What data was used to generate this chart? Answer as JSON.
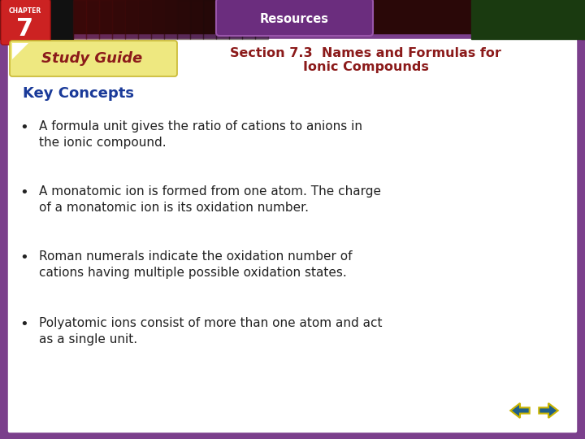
{
  "bg_outer": "#7B3F8C",
  "bg_inner": "#FFFFFF",
  "top_bar_left_color": "#1a1a1a",
  "top_bar_mid_color": "#5a0a0a",
  "top_bar_right_color": "#1a3a10",
  "resources_tab_color": "#6B2D7E",
  "resources_text": "Resources",
  "chapter_box_color": "#CC2222",
  "chapter_label": "CHAPTER",
  "chapter_number": "7",
  "study_guide_text": "Study Guide",
  "study_guide_color": "#8B1A1A",
  "study_guide_bg": "#EEE880",
  "section_title_line1": "Section 7.3  Names and Formulas for",
  "section_title_line2": "Ionic Compounds",
  "section_title_color": "#8B1A1A",
  "key_concepts_label": "Key Concepts",
  "key_concepts_color": "#1a3a99",
  "bullet_text_color": "#222222",
  "bullet_points": [
    "A formula unit gives the ratio of cations to anions in\nthe ionic compound.",
    "A monatomic ion is formed from one atom. The charge\nof a monatomic ion is its oxidation number.",
    "Roman numerals indicate the oxidation number of\ncations having multiple possible oxidation states.",
    "Polyatomic ions consist of more than one atom and act\nas a single unit."
  ],
  "arrow_fill_color": "#1F5F8B",
  "arrow_outline_color": "#C8B400"
}
